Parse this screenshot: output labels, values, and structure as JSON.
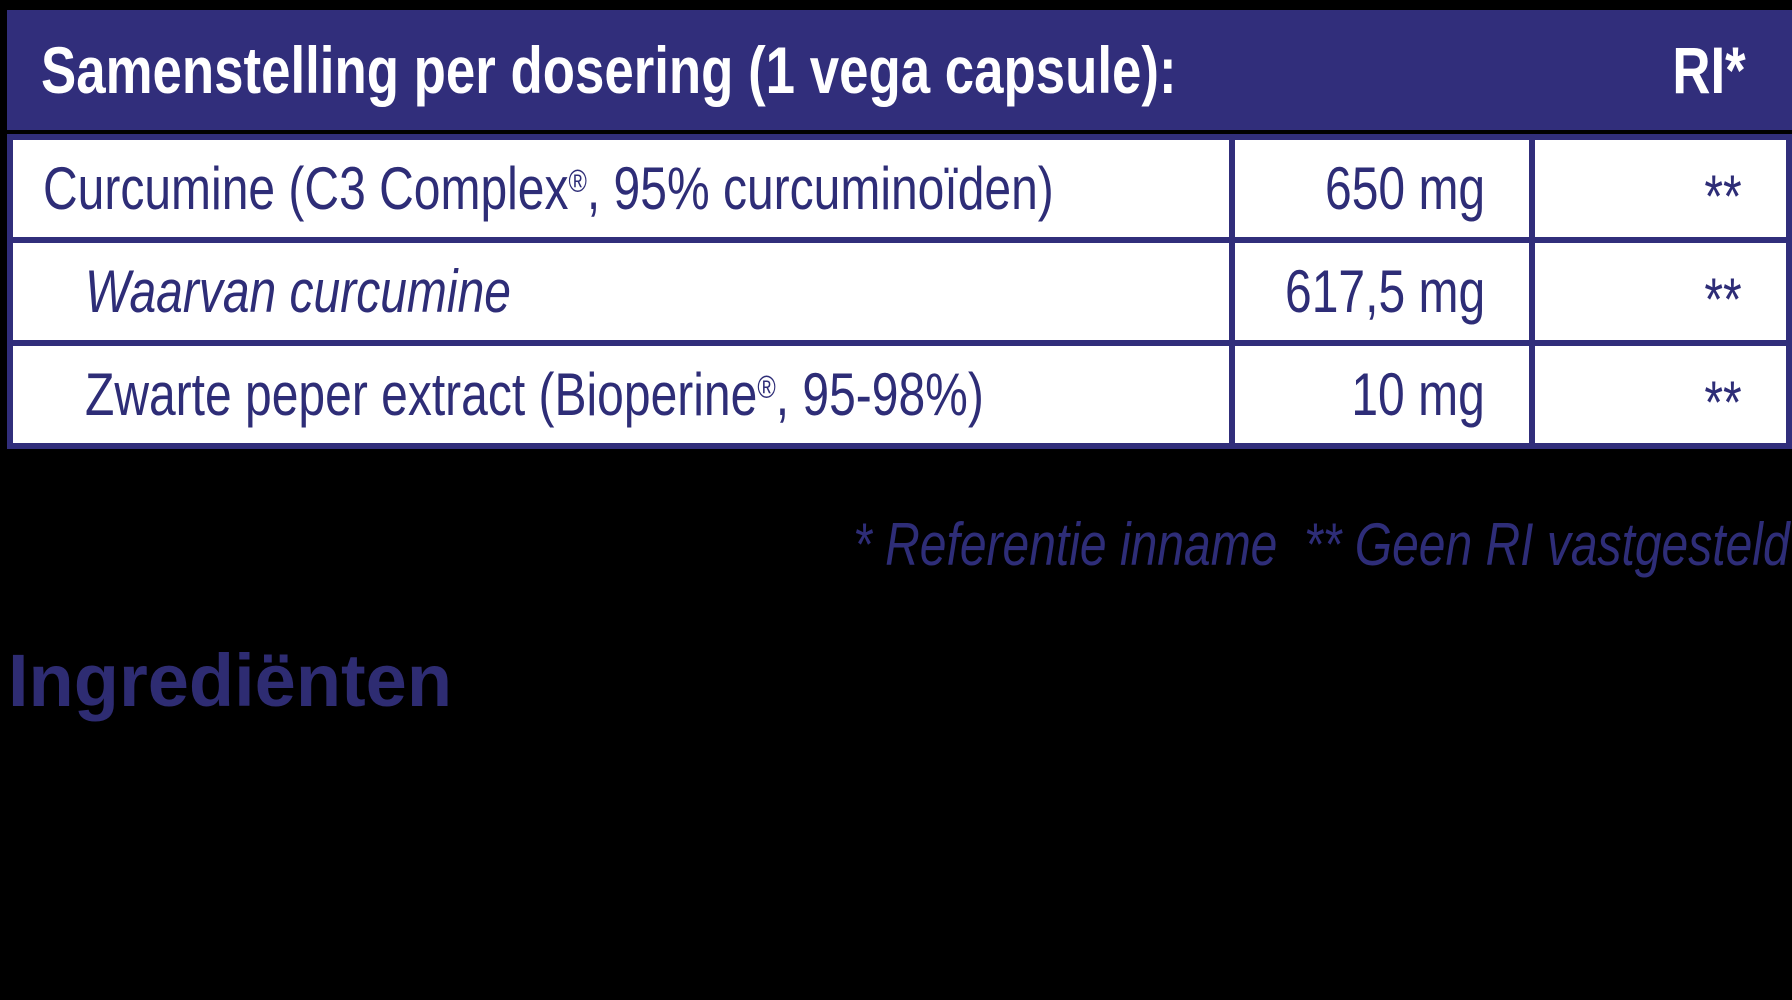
{
  "table": {
    "header": {
      "title": "Samenstelling per dosering (1 vega capsule):",
      "ri_label": "RI*"
    },
    "rows": [
      {
        "label": "Curcumine (C3 Complex®, 95% curcuminoïden)",
        "amount": "650 mg",
        "ri": "**",
        "indent": false,
        "italic": false
      },
      {
        "label": "Waarvan curcumine",
        "amount": "617,5 mg",
        "ri": "**",
        "indent": true,
        "italic": true
      },
      {
        "label": "Zwarte peper extract (Bioperine®, 95-98%)",
        "amount": "10 mg",
        "ri": "**",
        "indent": true,
        "italic": false
      }
    ]
  },
  "footnote": "* Referentie inname  ** Geen RI vastgesteld",
  "section_heading": "Ingrediënten",
  "colors": {
    "navy_header": "#312e7b",
    "navy_text": "#2e2d77",
    "heading_navy": "#2e2c72",
    "background": "#000000",
    "cell_white": "#ffffff"
  }
}
